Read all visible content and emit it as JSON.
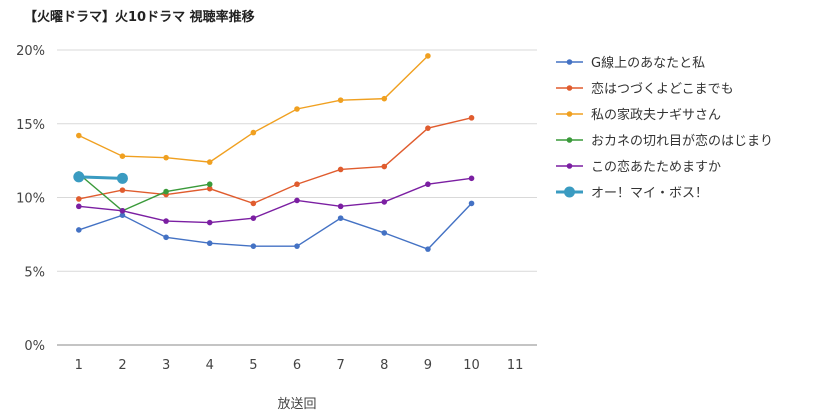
{
  "chart_data": {
    "type": "line",
    "title": "【火曜ドラマ】火10ドラマ 視聴率推移",
    "xlabel": "放送回",
    "ylabel": "",
    "x": [
      1,
      2,
      3,
      4,
      5,
      6,
      7,
      8,
      9,
      10,
      11
    ],
    "xlim": [
      0.5,
      11.5
    ],
    "ylim": [
      0,
      20
    ],
    "ytick_labels": [
      "0%",
      "5%",
      "10%",
      "15%",
      "20%"
    ],
    "yticks": [
      0,
      5,
      10,
      15,
      20
    ],
    "grid": true,
    "legend": "right",
    "series": [
      {
        "name": "G線上のあなたと私",
        "color": "#4472c4",
        "values": [
          7.8,
          8.8,
          7.3,
          6.9,
          6.7,
          6.7,
          8.6,
          7.6,
          6.5,
          9.6,
          null
        ]
      },
      {
        "name": "恋はつづくよどこまでも",
        "color": "#e05c2e",
        "values": [
          9.9,
          10.5,
          10.2,
          10.6,
          9.6,
          10.9,
          11.9,
          12.1,
          14.7,
          15.4,
          null
        ]
      },
      {
        "name": "私の家政夫ナギサさん",
        "color": "#f0a020",
        "values": [
          14.2,
          12.8,
          12.7,
          12.4,
          14.4,
          16.0,
          16.6,
          16.7,
          19.6,
          null,
          null
        ]
      },
      {
        "name": "おカネの切れ目が恋のはじまり",
        "color": "#3a9a3a",
        "values": [
          11.6,
          9.1,
          10.4,
          10.9,
          null,
          null,
          null,
          null,
          null,
          null,
          null
        ]
      },
      {
        "name": "この恋あたためますか",
        "color": "#7b1fa2",
        "values": [
          9.4,
          9.1,
          8.4,
          8.3,
          8.6,
          9.8,
          9.4,
          9.7,
          10.9,
          11.3,
          null
        ]
      },
      {
        "name": "オー！マイ・ボス！",
        "color": "#3a9bc1",
        "values": [
          11.4,
          11.3,
          null,
          null,
          null,
          null,
          null,
          null,
          null,
          null,
          null
        ]
      }
    ]
  }
}
